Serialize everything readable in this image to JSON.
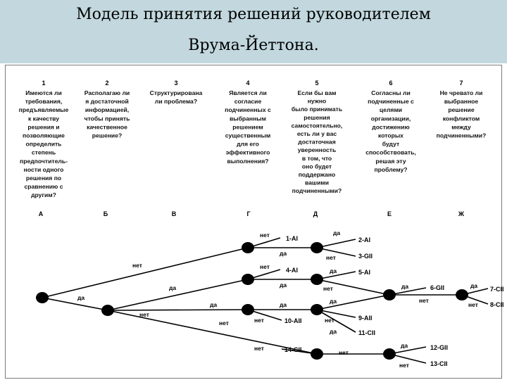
{
  "title": {
    "line1": "Модель принятия решений руководителем",
    "line2": "Врума-Йеттона."
  },
  "questions": [
    {
      "num": "1",
      "lines": [
        "Имеются ли",
        "требования,",
        "предъявляемые",
        "к качеству",
        "решения и",
        "позволяющие",
        "определить",
        "степень",
        "предпочтитель-",
        "ности одного",
        "решения по",
        "сравнению с",
        "другим?"
      ]
    },
    {
      "num": "2",
      "lines": [
        "Располагаю ли",
        "я достаточной",
        "информацией,",
        "чтобы принять",
        "качественное",
        "решение?"
      ]
    },
    {
      "num": "3",
      "lines": [
        "Структурирована",
        "ли проблема?"
      ]
    },
    {
      "num": "4",
      "lines": [
        "Является ли",
        "согласие",
        "подчиненных с",
        "выбранным",
        "решением",
        "существенным",
        "для его",
        "эффективного",
        "выполнения?"
      ]
    },
    {
      "num": "5",
      "lines": [
        "Если бы вам",
        "нужно",
        "было принимать",
        "решения",
        "самостоятельно,",
        "есть ли у вас",
        "достаточная",
        "уверенность",
        "в том, что",
        "оно будет",
        "поддержано",
        "вашими",
        "подчиненными?"
      ]
    },
    {
      "num": "6",
      "lines": [
        "Согласны ли",
        "подчиненные с",
        "целями",
        "организации,",
        "достижению",
        "которых",
        "будут",
        "способствовать,",
        "решая эту",
        "проблему?"
      ]
    },
    {
      "num": "7",
      "lines": [
        "Не чревато ли",
        "выбранное",
        "решение",
        "конфликтом",
        "между",
        "подчиненными?"
      ]
    }
  ],
  "columns": [
    "А",
    "Б",
    "В",
    "Г",
    "Д",
    "Е",
    "Ж"
  ],
  "edge_labels": {
    "yes": "да",
    "no": "нет"
  },
  "outcomes": [
    "1-AI",
    "2-AI",
    "3-GII",
    "4-AI",
    "5-AI",
    "6-GII",
    "7-CII",
    "8-CII",
    "9-AII",
    "10-AII",
    "11-CII",
    "12-GII",
    "13-CII",
    "14-CII"
  ]
}
